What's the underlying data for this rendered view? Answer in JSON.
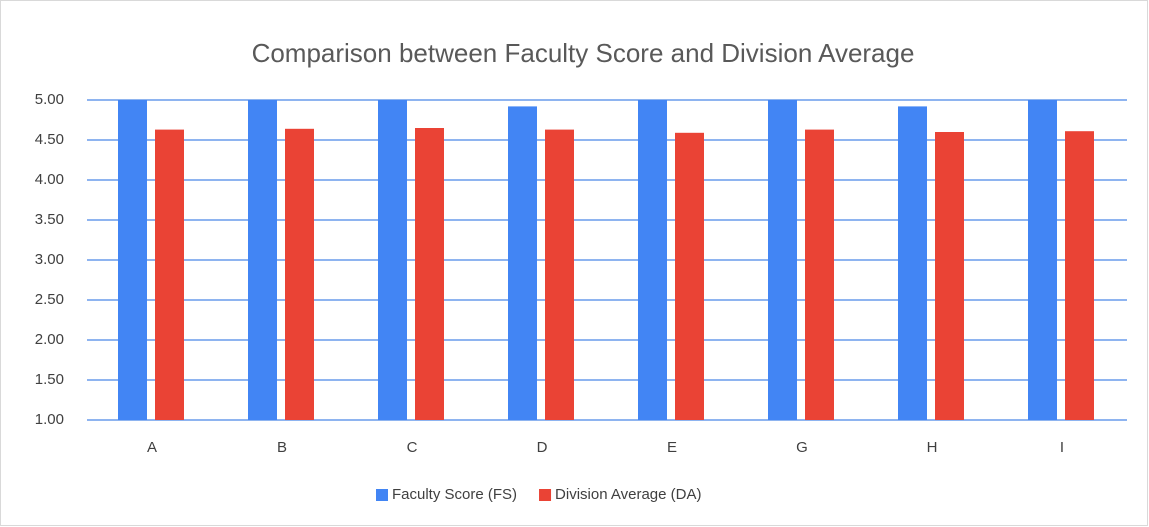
{
  "chart_data": {
    "type": "bar",
    "title": "Comparison between Faculty Score and Division Average",
    "categories": [
      "A",
      "B",
      "C",
      "D",
      "E",
      "G",
      "H",
      "I"
    ],
    "series": [
      {
        "name": "Faculty Score (FS)",
        "color": "#4285f4",
        "values": [
          5,
          5,
          5,
          4.92,
          5,
          5,
          4.92,
          5
        ]
      },
      {
        "name": "Division Average (DA)",
        "color": "#ea4335",
        "values": [
          4.63,
          4.64,
          4.65,
          4.63,
          4.59,
          4.63,
          4.6,
          4.61
        ]
      }
    ],
    "ylim": [
      1,
      5
    ],
    "yticks": [
      {
        "value": 1,
        "label": "1.00"
      },
      {
        "value": 1.5,
        "label": "1.50"
      },
      {
        "value": 2,
        "label": "2.00"
      },
      {
        "value": 2.5,
        "label": "2.50"
      },
      {
        "value": 3,
        "label": "3.00"
      },
      {
        "value": 3.5,
        "label": "3.50"
      },
      {
        "value": 4,
        "label": "4.00"
      },
      {
        "value": 4.5,
        "label": "4.50"
      },
      {
        "value": 5,
        "label": "5.00"
      }
    ],
    "grid": true,
    "legend": "bottom"
  }
}
